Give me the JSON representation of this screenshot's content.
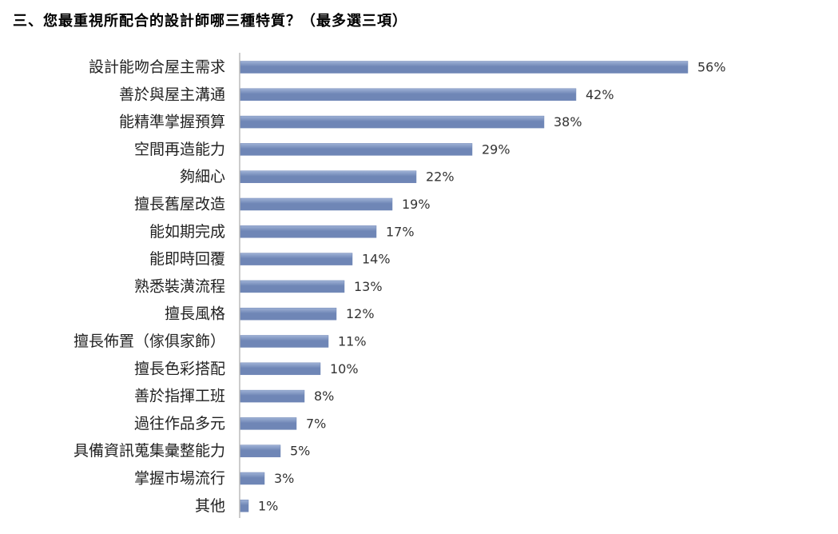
{
  "title": "三、您最重視所配合的設計師哪三種特質？（最多選三項）",
  "colors": {
    "bar": "#6f86b6",
    "bar_light": "#9fb2d6",
    "axis": "#999999"
  },
  "chart_data": {
    "type": "bar",
    "orientation": "horizontal",
    "title": "三、您最重視所配合的設計師哪三種特質？（最多選三項）",
    "categories": [
      "設計能吻合屋主需求",
      "善於與屋主溝通",
      "能精準掌握預算",
      "空間再造能力",
      "夠細心",
      "擅長舊屋改造",
      "能如期完成",
      "能即時回覆",
      "熟悉裝潢流程",
      "擅長風格",
      "擅長佈置（傢俱家飾）",
      "擅長色彩搭配",
      "善於指揮工班",
      "過往作品多元",
      "具備資訊蒐集彙整能力",
      "掌握市場流行",
      "其他"
    ],
    "values": [
      56,
      42,
      38,
      29,
      22,
      19,
      17,
      14,
      13,
      12,
      11,
      10,
      8,
      7,
      5,
      3,
      1
    ],
    "value_labels": [
      "56%",
      "42%",
      "38%",
      "29%",
      "22%",
      "19%",
      "17%",
      "14%",
      "13%",
      "12%",
      "11%",
      "10%",
      "8%",
      "7%",
      "5%",
      "3%",
      "1%"
    ],
    "unit": "%",
    "xlim": [
      0,
      60
    ],
    "grid": false,
    "legend": "none"
  }
}
